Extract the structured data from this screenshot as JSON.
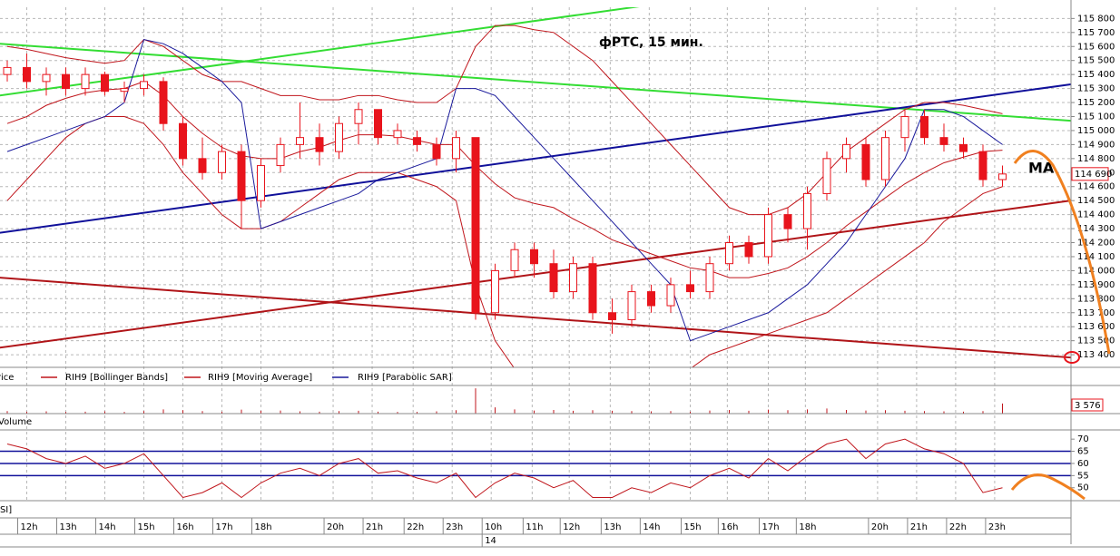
{
  "chart_data": {
    "type": "candlestick",
    "title": "фРТС,  15 мин.",
    "annotation": "MA",
    "ylim": [
      113310,
      115880
    ],
    "yticks": [
      {
        "value": 113400,
        "label": "113 400"
      },
      {
        "value": 113500,
        "label": "113 500"
      },
      {
        "value": 113600,
        "label": "113 600"
      },
      {
        "value": 113700,
        "label": "113 700"
      },
      {
        "value": 113800,
        "label": "113 800"
      },
      {
        "value": 113900,
        "label": "113 900"
      },
      {
        "value": 114000,
        "label": "114 000"
      },
      {
        "value": 114100,
        "label": "114 100"
      },
      {
        "value": 114200,
        "label": "114 200"
      },
      {
        "value": 114300,
        "label": "114 300"
      },
      {
        "value": 114400,
        "label": "114 400"
      },
      {
        "value": 114500,
        "label": "114 500"
      },
      {
        "value": 114600,
        "label": "114 600"
      },
      {
        "value": 114700,
        "label": "114 700"
      },
      {
        "value": 114800,
        "label": "114 800"
      },
      {
        "value": 114900,
        "label": "114 900"
      },
      {
        "value": 115000,
        "label": "115 000"
      },
      {
        "value": 115100,
        "label": "115 100"
      },
      {
        "value": 115200,
        "label": "115 200"
      },
      {
        "value": 115300,
        "label": "115 300"
      },
      {
        "value": 115400,
        "label": "115 400"
      },
      {
        "value": 115500,
        "label": "115 500"
      },
      {
        "value": 115600,
        "label": "115 600"
      },
      {
        "value": 115700,
        "label": "115 700"
      },
      {
        "value": 115800,
        "label": "115 800"
      }
    ],
    "last_price": {
      "value": 114690,
      "label": "114 690"
    },
    "grid": true,
    "up_color": "#ffffff",
    "down_color": "#e8141c",
    "candles": {
      "open": [
        115400,
        115450,
        115350,
        115400,
        115300,
        115400,
        115280,
        115300,
        115350,
        115050,
        114800,
        114700,
        114850,
        114500,
        114750,
        114900,
        114950,
        114850,
        115050,
        115150,
        114950,
        114950,
        114900,
        114800,
        114950,
        113700,
        114000,
        114150,
        114050,
        113850,
        114050,
        113700,
        113650,
        113850,
        113750,
        113900,
        113850,
        114050,
        114200,
        114100,
        114400,
        114300,
        114550,
        114800,
        114900,
        114650,
        114950,
        115100,
        114950,
        114900,
        114850,
        114650
      ],
      "high": [
        115500,
        115550,
        115450,
        115450,
        115450,
        115420,
        115350,
        115400,
        115380,
        115100,
        114950,
        114900,
        114900,
        114800,
        114950,
        115200,
        115050,
        115100,
        115200,
        115150,
        115050,
        115000,
        114950,
        115000,
        114950,
        114050,
        114200,
        114200,
        114150,
        114100,
        114100,
        113800,
        113900,
        113900,
        113950,
        114000,
        114100,
        114250,
        114250,
        114450,
        114450,
        114600,
        114850,
        114950,
        114950,
        115000,
        115150,
        115150,
        115050,
        114950,
        114900,
        114750
      ],
      "low": [
        115350,
        115300,
        115250,
        115250,
        115250,
        115250,
        115200,
        115250,
        115000,
        114750,
        114650,
        114650,
        114300,
        114450,
        114700,
        114800,
        114750,
        114800,
        114900,
        114900,
        114900,
        114850,
        114750,
        114700,
        113650,
        113650,
        113950,
        113950,
        113800,
        113800,
        113650,
        113550,
        113600,
        113700,
        113700,
        113800,
        113800,
        114000,
        114050,
        114050,
        114200,
        114150,
        114500,
        114700,
        114600,
        114600,
        114850,
        114900,
        114850,
        114800,
        114600,
        114600
      ],
      "close": [
        115450,
        115350,
        115400,
        115300,
        115400,
        115280,
        115300,
        115350,
        115050,
        114800,
        114700,
        114850,
        114500,
        114750,
        114900,
        114950,
        114850,
        115050,
        115150,
        114950,
        115000,
        114900,
        114800,
        114950,
        113700,
        114000,
        114150,
        114050,
        113850,
        114050,
        113700,
        113650,
        113850,
        113750,
        113900,
        113850,
        114050,
        114200,
        114100,
        114400,
        114300,
        114550,
        114800,
        114900,
        114650,
        114950,
        115100,
        114950,
        114900,
        114850,
        114650,
        114690
      ]
    },
    "series": [
      {
        "name": "RIH9 [Bollinger Bands]",
        "color": "#c0161c",
        "values": [
          115600,
          115580,
          115550,
          115520,
          115500,
          115480,
          115500,
          115650,
          115600,
          115500,
          115400,
          115350,
          115350,
          115300,
          115250,
          115250,
          115220,
          115220,
          115250,
          115250,
          115220,
          115200,
          115200,
          115300,
          115600,
          115750,
          115750,
          115720,
          115700,
          115600,
          115500,
          115350,
          115200,
          115050,
          114900,
          114750,
          114600,
          114450,
          114400,
          114400,
          114450,
          114550,
          114700,
          114850,
          114950,
          115050,
          115150,
          115200,
          115200,
          115180,
          115150,
          115120
        ],
        "lower": [
          114500,
          114650,
          114800,
          114950,
          115050,
          115100,
          115100,
          115050,
          114900,
          114700,
          114550,
          114400,
          114300,
          114300,
          114350,
          114450,
          114550,
          114650,
          114700,
          114700,
          114700,
          114650,
          114600,
          114500,
          113900,
          113500,
          113300,
          113250,
          113200,
          113150,
          113100,
          113100,
          113150,
          113200,
          113250,
          113300,
          113400,
          113450,
          113500,
          113550,
          113600,
          113650,
          113700,
          113800,
          113900,
          114000,
          114100,
          114200,
          114350,
          114450,
          114550,
          114600
        ]
      },
      {
        "name": "RIH9 [Moving Average]",
        "color": "#c0161c",
        "values": [
          115050,
          115100,
          115180,
          115230,
          115270,
          115290,
          115300,
          115350,
          115250,
          115100,
          114980,
          114880,
          114820,
          114800,
          114800,
          114850,
          114880,
          114930,
          114970,
          114970,
          114960,
          114930,
          114900,
          114900,
          114750,
          114620,
          114520,
          114480,
          114450,
          114370,
          114300,
          114220,
          114170,
          114120,
          114070,
          114020,
          114000,
          113950,
          113950,
          113980,
          114020,
          114100,
          114200,
          114320,
          114420,
          114520,
          114620,
          114700,
          114770,
          114810,
          114850,
          114860
        ]
      },
      {
        "name": "RIH9 [Parabolic SAR]",
        "color": "#1a1a9c",
        "values": [
          114850,
          114900,
          114950,
          115000,
          115050,
          115100,
          115200,
          115650,
          115620,
          115550,
          115450,
          115350,
          115200,
          114300,
          114350,
          114400,
          114450,
          114500,
          114550,
          114650,
          114700,
          114750,
          114800,
          115300,
          115300,
          115250,
          115100,
          114950,
          114800,
          114650,
          114500,
          114350,
          114200,
          114050,
          113900,
          113500,
          113550,
          113600,
          113650,
          113700,
          113800,
          113900,
          114050,
          114200,
          114400,
          114600,
          114800,
          115150,
          115150,
          115100,
          115000,
          114900
        ]
      }
    ],
    "price_legend": "Price",
    "trendlines": [
      {
        "color": "#33dd33",
        "x": [
          -0.4,
          33.1
        ],
        "y": [
          115250,
          115900
        ]
      },
      {
        "color": "#33dd33",
        "x": [
          -0.4,
          54.5
        ],
        "y": [
          115620,
          115070
        ]
      },
      {
        "color": "#10109a",
        "x": [
          -0.4,
          54.5
        ],
        "y": [
          114270,
          115330
        ]
      },
      {
        "color": "#b01418",
        "x": [
          -0.4,
          54.5
        ],
        "y": [
          113450,
          114500
        ]
      },
      {
        "color": "#b01418",
        "x": [
          -0.4,
          54.5
        ],
        "y": [
          113950,
          113380
        ]
      }
    ],
    "volume": {
      "name": "Volume",
      "color": "#c0161c",
      "ylim": [
        0,
        10000
      ],
      "last_label": "3 576",
      "values": [
        900,
        700,
        800,
        600,
        700,
        800,
        600,
        900,
        1500,
        1200,
        900,
        700,
        1400,
        1000,
        1100,
        800,
        700,
        900,
        1000,
        700,
        600,
        600,
        800,
        1200,
        9000,
        2200,
        1500,
        1100,
        1300,
        1000,
        1200,
        1000,
        900,
        800,
        900,
        700,
        1100,
        1300,
        1000,
        1400,
        1200,
        1500,
        1800,
        1300,
        1100,
        1200,
        1000,
        900,
        800,
        700,
        900,
        3576
      ]
    },
    "rsi": {
      "name": "RSI]",
      "color": "#c0161c",
      "level_color": "#10109a",
      "ylim": [
        45.8,
        72.3
      ],
      "yticks": [
        50,
        55,
        60,
        65,
        70
      ],
      "levels": [
        55,
        60,
        65
      ],
      "values": [
        68,
        66,
        62,
        60,
        63,
        58,
        60,
        64,
        55,
        46,
        48,
        52,
        46,
        52,
        56,
        58,
        55,
        60,
        62,
        56,
        57,
        54,
        52,
        56,
        46,
        52,
        56,
        54,
        50,
        53,
        46,
        46,
        50,
        48,
        52,
        50,
        55,
        58,
        54,
        62,
        57,
        63,
        68,
        70,
        62,
        68,
        70,
        66,
        64,
        60,
        48,
        50
      ]
    },
    "xticks": [
      {
        "value": 1,
        "label": "12h"
      },
      {
        "value": 3,
        "label": "13h"
      },
      {
        "value": 5,
        "label": "14h"
      },
      {
        "value": 7,
        "label": "15h"
      },
      {
        "value": 9,
        "label": "16h"
      },
      {
        "value": 11,
        "label": "17h"
      },
      {
        "value": 13,
        "label": "18h"
      },
      {
        "value": 16.7,
        "label": "20h"
      },
      {
        "value": 18.7,
        "label": "21h"
      },
      {
        "value": 20.8,
        "label": "22h"
      },
      {
        "value": 22.8,
        "label": "23h"
      },
      {
        "value": 24.8,
        "label": "10h"
      },
      {
        "value": 26.9,
        "label": "11h"
      },
      {
        "value": 28.8,
        "label": "12h"
      },
      {
        "value": 30.9,
        "label": "13h"
      },
      {
        "value": 32.9,
        "label": "14h"
      },
      {
        "value": 35,
        "label": "15h"
      },
      {
        "value": 36.9,
        "label": "16h"
      },
      {
        "value": 39,
        "label": "17h"
      },
      {
        "value": 40.9,
        "label": "18h"
      },
      {
        "value": 44.6,
        "label": "20h"
      },
      {
        "value": 46.6,
        "label": "21h"
      },
      {
        "value": 48.6,
        "label": "22h"
      },
      {
        "value": 50.6,
        "label": "23h"
      }
    ],
    "date_ticks": [
      {
        "value": 24.8,
        "label": "14"
      }
    ]
  }
}
